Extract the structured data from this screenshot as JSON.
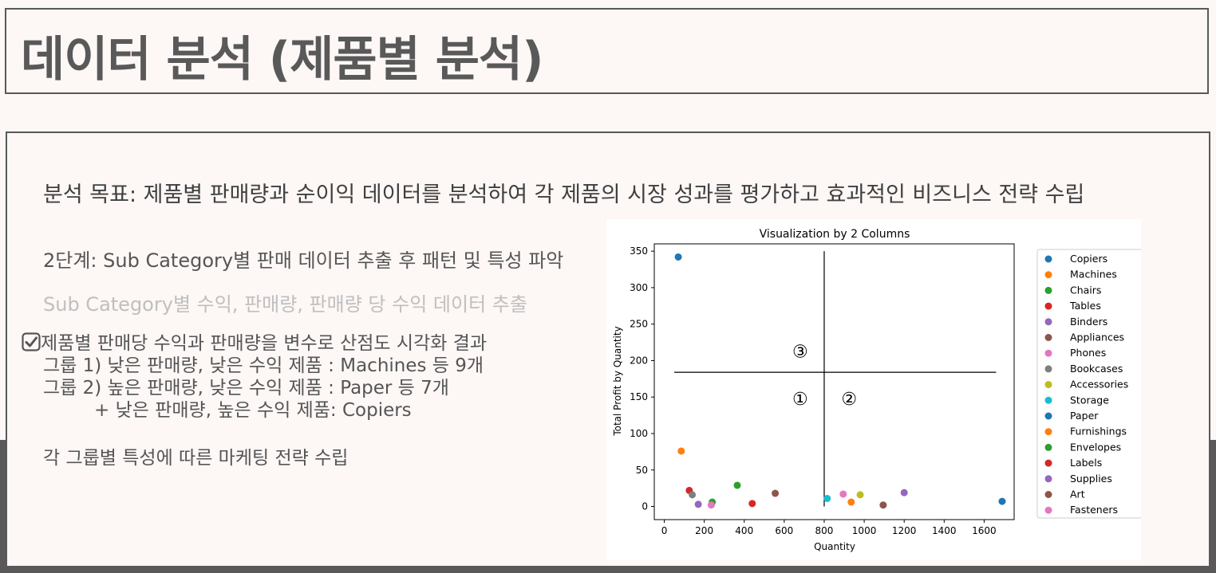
{
  "slide": {
    "title": "데이터 분석 (제품별 분석)",
    "goal": "분석 목표: 제품별 판매량과 순이익 데이터를 분석하여 각 제품의 시장 성과를 평가하고 효과적인 비즈니스 전략 수립",
    "step": "2단계: Sub Category별 판매 데이터 추출 후 패턴 및 특성 파악",
    "substep": "Sub Category별 수익, 판매량, 판매량 당 수익 데이터 추출",
    "result_lines": [
      "제품별 판매당 수익과 판매량을 변수로 산점도 시각화 결과",
      "그룹 1) 낮은 판매량, 낮은 수익 제품 : Machines 등 9개",
      "그룹 2) 높은 판매량, 낮은 수익 제품 : Paper 등 7개",
      "+ 낮은 판매량, 높은 수익 제품: Copiers"
    ],
    "strategy": "각 그룹별 특성에 따른 마케팅 전략 수립",
    "icons": {
      "result_check": "checkbox-checked-icon"
    },
    "colors": {
      "title": "#595959",
      "band": "#595959",
      "muted": "#bfbfbf"
    }
  },
  "chart_data": {
    "type": "scatter",
    "title": "Visualization by 2 Columns",
    "xlabel": "Quantity",
    "ylabel": "Total Profit by Quantity",
    "xlim": [
      -50,
      1750
    ],
    "ylim": [
      -18,
      360
    ],
    "xticks": [
      0,
      200,
      400,
      600,
      800,
      1000,
      1200,
      1400,
      1600
    ],
    "yticks": [
      0,
      50,
      100,
      150,
      200,
      250,
      300,
      350
    ],
    "grid": false,
    "legend_position": "right",
    "series": [
      {
        "name": "Copiers",
        "x": 70,
        "y": 342,
        "color": "#1f77b4"
      },
      {
        "name": "Machines",
        "x": 85,
        "y": 76,
        "color": "#ff7f0e"
      },
      {
        "name": "Chairs",
        "x": 240,
        "y": 6,
        "color": "#2ca02c"
      },
      {
        "name": "Tables",
        "x": 125,
        "y": 22,
        "color": "#d62728"
      },
      {
        "name": "Binders",
        "x": 170,
        "y": 3,
        "color": "#9467bd"
      },
      {
        "name": "Appliances",
        "x": 555,
        "y": 18,
        "color": "#8c564b"
      },
      {
        "name": "Phones",
        "x": 235,
        "y": 2,
        "color": "#e377c2"
      },
      {
        "name": "Bookcases",
        "x": 140,
        "y": 16,
        "color": "#7f7f7f"
      },
      {
        "name": "Accessories",
        "x": 980,
        "y": 16,
        "color": "#bcbd22"
      },
      {
        "name": "Storage",
        "x": 815,
        "y": 11,
        "color": "#17becf"
      },
      {
        "name": "Paper",
        "x": 1690,
        "y": 7,
        "color": "#1f77b4"
      },
      {
        "name": "Furnishings",
        "x": 935,
        "y": 6,
        "color": "#ff7f0e"
      },
      {
        "name": "Envelopes",
        "x": 365,
        "y": 29,
        "color": "#2ca02c"
      },
      {
        "name": "Labels",
        "x": 440,
        "y": 4,
        "color": "#d62728"
      },
      {
        "name": "Supplies",
        "x": 1200,
        "y": 19,
        "color": "#9467bd"
      },
      {
        "name": "Art",
        "x": 1095,
        "y": 2,
        "color": "#8c564b"
      },
      {
        "name": "Fasteners",
        "x": 895,
        "y": 17,
        "color": "#e377c2"
      }
    ],
    "reference_lines": {
      "vertical_x": 800,
      "vertical_y_range": [
        0,
        350
      ],
      "horizontal_y": 184,
      "horizontal_x_range": [
        50,
        1660
      ]
    },
    "annotations": [
      {
        "text": "③",
        "x": 680,
        "y": 213
      },
      {
        "text": "①",
        "x": 680,
        "y": 148
      },
      {
        "text": "②",
        "x": 925,
        "y": 148
      }
    ]
  }
}
